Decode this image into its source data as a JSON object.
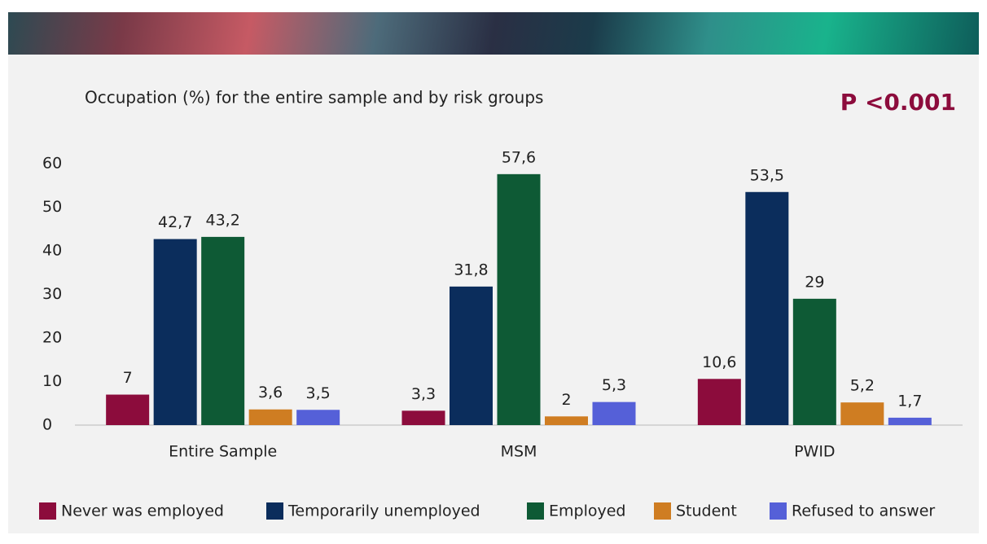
{
  "chart_data": {
    "type": "bar",
    "title": "Occupation (%) for the entire sample and by risk groups",
    "annotation": "P <0.001",
    "categories": [
      "Entire Sample",
      "MSM",
      "PWID"
    ],
    "series": [
      {
        "name": "Never was employed",
        "color": "#8c0c3c",
        "values": [
          7,
          3.3,
          10.6
        ],
        "value_labels": [
          "7",
          "3,3",
          "10,6"
        ]
      },
      {
        "name": "Temporarily unemployed",
        "color": "#0b2d5c",
        "values": [
          42.7,
          31.8,
          53.5
        ],
        "value_labels": [
          "42,7",
          "31,8",
          "53,5"
        ]
      },
      {
        "name": "Employed",
        "color": "#0e5a35",
        "values": [
          43.2,
          57.6,
          29
        ],
        "value_labels": [
          "43,2",
          "57,6",
          "29"
        ]
      },
      {
        "name": "Student",
        "color": "#cf7d22",
        "values": [
          3.6,
          2,
          5.2
        ],
        "value_labels": [
          "3,6",
          "2",
          "5,2"
        ]
      },
      {
        "name": "Refused to answer",
        "color": "#5560d8",
        "values": [
          3.5,
          5.3,
          1.7
        ],
        "value_labels": [
          "3,5",
          "5,3",
          "1,7"
        ]
      }
    ],
    "ylim": [
      0,
      60
    ],
    "yticks": [
      0,
      10,
      20,
      30,
      40,
      50,
      60
    ],
    "grid": false
  }
}
